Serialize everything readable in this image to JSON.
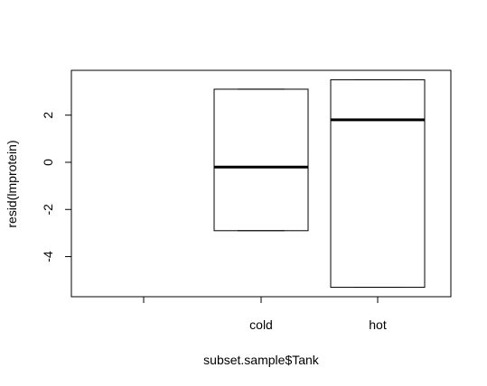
{
  "chart_data": {
    "type": "box",
    "xlabel": "subset.sample$Tank",
    "ylabel": "resid(lmprotein)",
    "categories": [
      "",
      "cold",
      "hot"
    ],
    "boxes": [
      {
        "category": "",
        "min": null,
        "q1": null,
        "median": null,
        "q3": null,
        "max": null
      },
      {
        "category": "cold",
        "min": -2.9,
        "q1": -2.9,
        "median": -0.2,
        "q3": 3.1,
        "max": 3.1
      },
      {
        "category": "hot",
        "min": -5.3,
        "q1": -5.3,
        "median": 1.8,
        "q3": 3.5,
        "max": 3.5
      }
    ],
    "y_ticks": [
      -4,
      -2,
      0,
      2
    ],
    "ylim": [
      -5.7,
      3.9
    ],
    "grid": false,
    "colors": {
      "box_fill": "#ffffff",
      "stroke": "#000000"
    }
  }
}
